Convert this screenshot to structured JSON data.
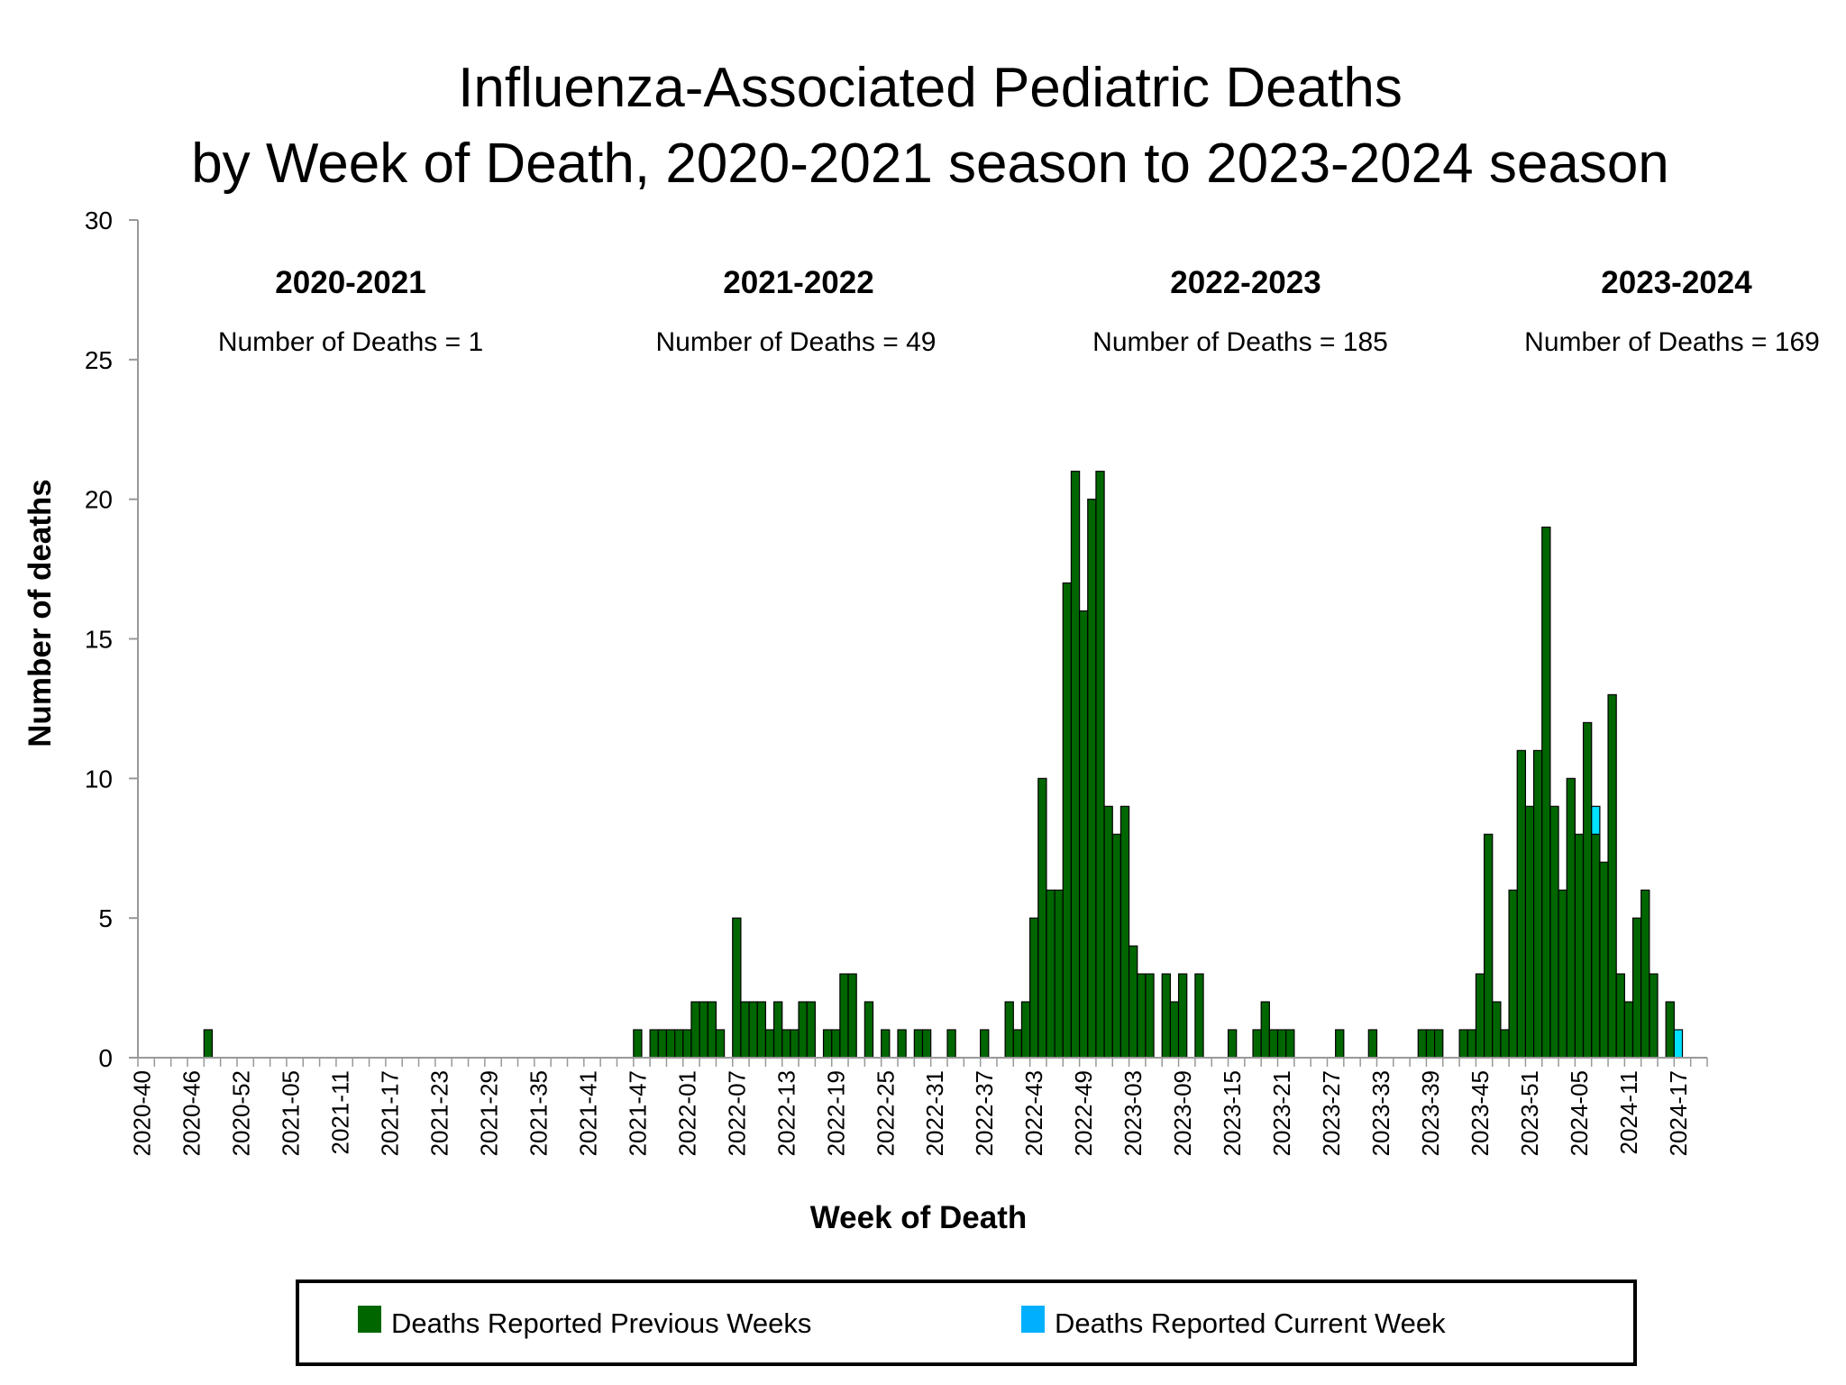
{
  "chart_data": {
    "type": "bar",
    "stacked": true,
    "title": [
      "Influenza-Associated Pediatric Deaths",
      "by Week of Death, 2020-2021 season to 2023-2024 season"
    ],
    "xlabel": "Week of Death",
    "ylabel": "Number of deaths",
    "ylim": [
      0,
      30
    ],
    "yticks": [
      0,
      5,
      10,
      15,
      20,
      25,
      30
    ],
    "grid": false,
    "legend_position": "bottom",
    "colors": {
      "previous": "#006600",
      "current": "#00B0FF",
      "current_bar": "#00E0FF"
    },
    "seasons": [
      {
        "label": "2020-2021",
        "count_text": "Number of Deaths = 1"
      },
      {
        "label": "2021-2022",
        "count_text": "Number of Deaths = 49"
      },
      {
        "label": "2022-2023",
        "count_text": "Number of Deaths = 185"
      },
      {
        "label": "2023-2024",
        "count_text": "Number of Deaths = 169"
      }
    ],
    "categories": [
      "2020-40",
      "2020-41",
      "2020-42",
      "2020-43",
      "2020-44",
      "2020-45",
      "2020-46",
      "2020-47",
      "2020-48",
      "2020-49",
      "2020-50",
      "2020-51",
      "2020-52",
      "2020-53",
      "2021-01",
      "2021-02",
      "2021-03",
      "2021-04",
      "2021-05",
      "2021-06",
      "2021-07",
      "2021-08",
      "2021-09",
      "2021-10",
      "2021-11",
      "2021-12",
      "2021-13",
      "2021-14",
      "2021-15",
      "2021-16",
      "2021-17",
      "2021-18",
      "2021-19",
      "2021-20",
      "2021-21",
      "2021-22",
      "2021-23",
      "2021-24",
      "2021-25",
      "2021-26",
      "2021-27",
      "2021-28",
      "2021-29",
      "2021-30",
      "2021-31",
      "2021-32",
      "2021-33",
      "2021-34",
      "2021-35",
      "2021-36",
      "2021-37",
      "2021-38",
      "2021-39",
      "2021-40",
      "2021-41",
      "2021-42",
      "2021-43",
      "2021-44",
      "2021-45",
      "2021-46",
      "2021-47",
      "2021-48",
      "2021-49",
      "2021-50",
      "2021-51",
      "2021-52",
      "2022-01",
      "2022-02",
      "2022-03",
      "2022-04",
      "2022-05",
      "2022-06",
      "2022-07",
      "2022-08",
      "2022-09",
      "2022-10",
      "2022-11",
      "2022-12",
      "2022-13",
      "2022-14",
      "2022-15",
      "2022-16",
      "2022-17",
      "2022-18",
      "2022-19",
      "2022-20",
      "2022-21",
      "2022-22",
      "2022-23",
      "2022-24",
      "2022-25",
      "2022-26",
      "2022-27",
      "2022-28",
      "2022-29",
      "2022-30",
      "2022-31",
      "2022-32",
      "2022-33",
      "2022-34",
      "2022-35",
      "2022-36",
      "2022-37",
      "2022-38",
      "2022-39",
      "2022-40",
      "2022-41",
      "2022-42",
      "2022-43",
      "2022-44",
      "2022-45",
      "2022-46",
      "2022-47",
      "2022-48",
      "2022-49",
      "2022-50",
      "2022-51",
      "2022-52",
      "2023-01",
      "2023-02",
      "2023-03",
      "2023-04",
      "2023-05",
      "2023-06",
      "2023-07",
      "2023-08",
      "2023-09",
      "2023-10",
      "2023-11",
      "2023-12",
      "2023-13",
      "2023-14",
      "2023-15",
      "2023-16",
      "2023-17",
      "2023-18",
      "2023-19",
      "2023-20",
      "2023-21",
      "2023-22",
      "2023-23",
      "2023-24",
      "2023-25",
      "2023-26",
      "2023-27",
      "2023-28",
      "2023-29",
      "2023-30",
      "2023-31",
      "2023-32",
      "2023-33",
      "2023-34",
      "2023-35",
      "2023-36",
      "2023-37",
      "2023-38",
      "2023-39",
      "2023-40",
      "2023-41",
      "2023-42",
      "2023-43",
      "2023-44",
      "2023-45",
      "2023-46",
      "2023-47",
      "2023-48",
      "2023-49",
      "2023-50",
      "2023-51",
      "2023-52",
      "2024-01",
      "2024-02",
      "2024-03",
      "2024-04",
      "2024-05",
      "2024-06",
      "2024-07",
      "2024-08",
      "2024-09",
      "2024-10",
      "2024-11",
      "2024-12",
      "2024-13",
      "2024-14",
      "2024-15",
      "2024-16",
      "2024-17",
      "2024-18",
      "2024-19",
      "2024-20"
    ],
    "series": [
      {
        "name": "Deaths Reported Previous Weeks",
        "values": [
          0,
          0,
          0,
          0,
          0,
          0,
          0,
          0,
          1,
          0,
          0,
          0,
          0,
          0,
          0,
          0,
          0,
          0,
          0,
          0,
          0,
          0,
          0,
          0,
          0,
          0,
          0,
          0,
          0,
          0,
          0,
          0,
          0,
          0,
          0,
          0,
          0,
          0,
          0,
          0,
          0,
          0,
          0,
          0,
          0,
          0,
          0,
          0,
          0,
          0,
          0,
          0,
          0,
          0,
          0,
          0,
          0,
          0,
          0,
          0,
          1,
          0,
          1,
          1,
          1,
          1,
          1,
          2,
          2,
          2,
          1,
          0,
          5,
          2,
          2,
          2,
          1,
          2,
          1,
          1,
          2,
          2,
          0,
          1,
          1,
          3,
          3,
          0,
          2,
          0,
          1,
          0,
          1,
          0,
          1,
          1,
          0,
          0,
          1,
          0,
          0,
          0,
          1,
          0,
          0,
          2,
          1,
          2,
          5,
          10,
          6,
          6,
          17,
          21,
          16,
          20,
          21,
          9,
          8,
          9,
          4,
          3,
          3,
          0,
          3,
          2,
          3,
          0,
          3,
          0,
          0,
          0,
          1,
          0,
          0,
          1,
          2,
          1,
          1,
          1,
          0,
          0,
          0,
          0,
          0,
          1,
          0,
          0,
          0,
          1,
          0,
          0,
          0,
          0,
          0,
          1,
          1,
          1,
          0,
          0,
          1,
          1,
          3,
          8,
          2,
          1,
          6,
          11,
          9,
          11,
          19,
          9,
          6,
          10,
          8,
          12,
          8,
          7,
          13,
          3,
          2,
          5,
          6,
          3,
          0,
          2,
          0,
          0,
          0,
          0
        ]
      },
      {
        "name": "Deaths Reported Current Week",
        "values": [
          0,
          0,
          0,
          0,
          0,
          0,
          0,
          0,
          0,
          0,
          0,
          0,
          0,
          0,
          0,
          0,
          0,
          0,
          0,
          0,
          0,
          0,
          0,
          0,
          0,
          0,
          0,
          0,
          0,
          0,
          0,
          0,
          0,
          0,
          0,
          0,
          0,
          0,
          0,
          0,
          0,
          0,
          0,
          0,
          0,
          0,
          0,
          0,
          0,
          0,
          0,
          0,
          0,
          0,
          0,
          0,
          0,
          0,
          0,
          0,
          0,
          0,
          0,
          0,
          0,
          0,
          0,
          0,
          0,
          0,
          0,
          0,
          0,
          0,
          0,
          0,
          0,
          0,
          0,
          0,
          0,
          0,
          0,
          0,
          0,
          0,
          0,
          0,
          0,
          0,
          0,
          0,
          0,
          0,
          0,
          0,
          0,
          0,
          0,
          0,
          0,
          0,
          0,
          0,
          0,
          0,
          0,
          0,
          0,
          0,
          0,
          0,
          0,
          0,
          0,
          0,
          0,
          0,
          0,
          0,
          0,
          0,
          0,
          0,
          0,
          0,
          0,
          0,
          0,
          0,
          0,
          0,
          0,
          0,
          0,
          0,
          0,
          0,
          0,
          0,
          0,
          0,
          0,
          0,
          0,
          0,
          0,
          0,
          0,
          0,
          0,
          0,
          0,
          0,
          0,
          0,
          0,
          0,
          0,
          0,
          0,
          0,
          0,
          0,
          0,
          0,
          0,
          0,
          0,
          0,
          0,
          0,
          0,
          0,
          0,
          0,
          1,
          0,
          0,
          0,
          0,
          0,
          0,
          0,
          0,
          0,
          1,
          0,
          0,
          0
        ]
      }
    ]
  }
}
